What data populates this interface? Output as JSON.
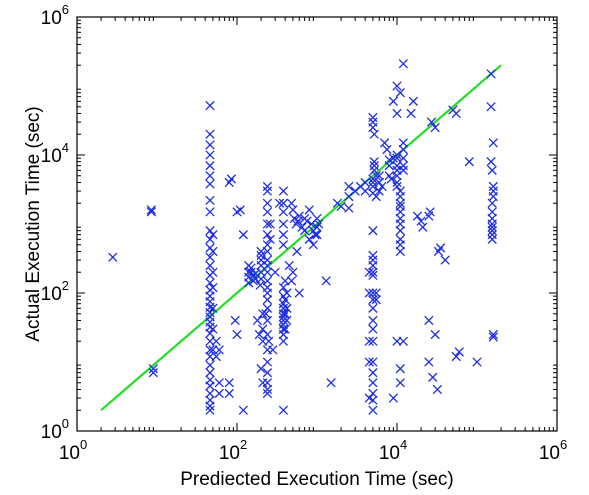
{
  "chart_data": {
    "type": "scatter",
    "title": "",
    "xlabel": "Prediected Execution Time (sec)",
    "ylabel": "Actual Execution Time (sec)",
    "xscale": "log",
    "yscale": "log",
    "xlim": [
      1,
      1000000
    ],
    "ylim": [
      1,
      1000000
    ],
    "x_ticks": [
      {
        "base": "10",
        "exp": "0"
      },
      {
        "base": "10",
        "exp": "2"
      },
      {
        "base": "10",
        "exp": "4"
      },
      {
        "base": "10",
        "exp": "6"
      }
    ],
    "y_ticks": [
      {
        "base": "10",
        "exp": "0"
      },
      {
        "base": "10",
        "exp": "2"
      },
      {
        "base": "10",
        "exp": "4"
      },
      {
        "base": "10",
        "exp": "6"
      }
    ],
    "grid": false,
    "legend": "none",
    "series": [
      {
        "marker": "x",
        "color": "#1f2fe0",
        "points": [
          [
            2.8,
            330
          ],
          [
            8.5,
            1600
          ],
          [
            8.5,
            1500
          ],
          [
            9.0,
            8
          ],
          [
            9.0,
            7
          ],
          [
            46,
            52000
          ],
          [
            46,
            20000
          ],
          [
            46,
            14000
          ],
          [
            46,
            10000
          ],
          [
            46,
            7000
          ],
          [
            46,
            5000
          ],
          [
            46,
            3800
          ],
          [
            46,
            2200
          ],
          [
            46,
            1500
          ],
          [
            46,
            800
          ],
          [
            46,
            600
          ],
          [
            46,
            450
          ],
          [
            46,
            330
          ],
          [
            46,
            250
          ],
          [
            46,
            180
          ],
          [
            46,
            140
          ],
          [
            46,
            110
          ],
          [
            46,
            90
          ],
          [
            46,
            75
          ],
          [
            46,
            62
          ],
          [
            46,
            52
          ],
          [
            46,
            45
          ],
          [
            46,
            38
          ],
          [
            46,
            32
          ],
          [
            46,
            26
          ],
          [
            46,
            20
          ],
          [
            46,
            15
          ],
          [
            46,
            12
          ],
          [
            46,
            9
          ],
          [
            46,
            7
          ],
          [
            46,
            5.5
          ],
          [
            46,
            4.5
          ],
          [
            46,
            3.5
          ],
          [
            46,
            2.8
          ],
          [
            46,
            2.3
          ],
          [
            46,
            2.0
          ],
          [
            50,
            700
          ],
          [
            50,
            400
          ],
          [
            50,
            200
          ],
          [
            50,
            120
          ],
          [
            50,
            60
          ],
          [
            50,
            30
          ],
          [
            50,
            15
          ],
          [
            55,
            20
          ],
          [
            55,
            12
          ],
          [
            60,
            15
          ],
          [
            60,
            5
          ],
          [
            60,
            3.5
          ],
          [
            80,
            5
          ],
          [
            80,
            3.5
          ],
          [
            85,
            4500
          ],
          [
            80,
            4000
          ],
          [
            100,
            1500
          ],
          [
            110,
            1600
          ],
          [
            120,
            700
          ],
          [
            120,
            2.0
          ],
          [
            95,
            40
          ],
          [
            100,
            25
          ],
          [
            140,
            250
          ],
          [
            140,
            200
          ],
          [
            140,
            170
          ],
          [
            140,
            140
          ],
          [
            150,
            230
          ],
          [
            150,
            200
          ],
          [
            160,
            180
          ],
          [
            160,
            150
          ],
          [
            170,
            190
          ],
          [
            170,
            160
          ],
          [
            195,
            130
          ],
          [
            200,
            400
          ],
          [
            200,
            350
          ],
          [
            200,
            300
          ],
          [
            200,
            250
          ],
          [
            200,
            200
          ],
          [
            200,
            160
          ],
          [
            210,
            50
          ],
          [
            210,
            30
          ],
          [
            210,
            20
          ],
          [
            240,
            3500
          ],
          [
            240,
            3000
          ],
          [
            240,
            2000
          ],
          [
            240,
            1500
          ],
          [
            240,
            1000
          ],
          [
            240,
            700
          ],
          [
            240,
            500
          ],
          [
            240,
            400
          ],
          [
            240,
            300
          ],
          [
            240,
            250
          ],
          [
            240,
            200
          ],
          [
            240,
            150
          ],
          [
            240,
            120
          ],
          [
            240,
            100
          ],
          [
            240,
            80
          ],
          [
            240,
            60
          ],
          [
            240,
            40
          ],
          [
            240,
            25
          ],
          [
            240,
            15
          ],
          [
            240,
            10
          ],
          [
            240,
            7
          ],
          [
            240,
            5
          ],
          [
            240,
            4
          ],
          [
            240,
            3.5
          ],
          [
            260,
            1000
          ],
          [
            260,
            600
          ],
          [
            180,
            40
          ],
          [
            190,
            25
          ],
          [
            230,
            50
          ],
          [
            250,
            20
          ],
          [
            280,
            15
          ],
          [
            300,
            200
          ],
          [
            340,
            2000
          ],
          [
            200,
            8
          ],
          [
            210,
            5
          ],
          [
            380,
            3000
          ],
          [
            380,
            2000
          ],
          [
            380,
            1500
          ],
          [
            380,
            1000
          ],
          [
            380,
            700
          ],
          [
            380,
            500
          ],
          [
            380,
            120
          ],
          [
            380,
            90
          ],
          [
            380,
            70
          ],
          [
            380,
            60
          ],
          [
            380,
            50
          ],
          [
            380,
            45
          ],
          [
            380,
            40
          ],
          [
            380,
            35
          ],
          [
            380,
            30
          ],
          [
            380,
            25
          ],
          [
            380,
            20
          ],
          [
            380,
            2.0
          ],
          [
            400,
            150
          ],
          [
            400,
            80
          ],
          [
            400,
            50
          ],
          [
            400,
            30
          ],
          [
            420,
            100
          ],
          [
            420,
            60
          ],
          [
            420,
            40
          ],
          [
            480,
            2000
          ],
          [
            500,
            1600
          ],
          [
            520,
            1200
          ],
          [
            550,
            1000
          ],
          [
            580,
            1100
          ],
          [
            600,
            1300
          ],
          [
            650,
            900
          ],
          [
            700,
            1200
          ],
          [
            700,
            800
          ],
          [
            750,
            1100
          ],
          [
            800,
            1600
          ],
          [
            850,
            1000
          ],
          [
            900,
            800
          ],
          [
            950,
            700
          ],
          [
            1000,
            1200
          ],
          [
            1000,
            900
          ],
          [
            1000,
            700
          ],
          [
            1050,
            1000
          ],
          [
            450,
            250
          ],
          [
            480,
            150
          ],
          [
            600,
            100
          ],
          [
            500,
            200
          ],
          [
            560,
            400
          ],
          [
            800,
            600
          ],
          [
            900,
            500
          ],
          [
            1300,
            150
          ],
          [
            1500,
            5
          ],
          [
            1800,
            2000
          ],
          [
            2000,
            1800
          ],
          [
            2500,
            3500
          ],
          [
            2500,
            1700
          ],
          [
            2500,
            2500
          ],
          [
            3000,
            3000
          ],
          [
            3500,
            3500
          ],
          [
            4000,
            4000
          ],
          [
            4000,
            3000
          ],
          [
            5000,
            4000
          ],
          [
            5000,
            3500
          ],
          [
            5000,
            4500
          ],
          [
            5500,
            5000
          ],
          [
            6000,
            5000
          ],
          [
            6000,
            4000
          ],
          [
            6500,
            3500
          ],
          [
            6000,
            3000
          ],
          [
            5000,
            2800
          ],
          [
            5500,
            2500
          ],
          [
            5000,
            35000
          ],
          [
            5000,
            30000
          ],
          [
            5000,
            25000
          ],
          [
            5200,
            20000
          ],
          [
            5200,
            8000
          ],
          [
            5200,
            7000
          ],
          [
            5200,
            6000
          ],
          [
            5000,
            800
          ],
          [
            5000,
            350
          ],
          [
            5000,
            300
          ],
          [
            5000,
            250
          ],
          [
            5000,
            200
          ],
          [
            5000,
            180
          ],
          [
            5000,
            100
          ],
          [
            5000,
            80
          ],
          [
            5000,
            60
          ],
          [
            5000,
            40
          ],
          [
            5000,
            30
          ],
          [
            5000,
            20
          ],
          [
            5000,
            10
          ],
          [
            5000,
            7
          ],
          [
            5000,
            5
          ],
          [
            5000,
            3.5
          ],
          [
            5000,
            2.8
          ],
          [
            5000,
            2.0
          ],
          [
            4500,
            200
          ],
          [
            4500,
            100
          ],
          [
            4500,
            20
          ],
          [
            4500,
            10
          ],
          [
            4500,
            3.0
          ],
          [
            5500,
            100
          ],
          [
            5500,
            80
          ],
          [
            7000,
            15000
          ],
          [
            7500,
            12000
          ],
          [
            8000,
            7000
          ],
          [
            8000,
            5000
          ],
          [
            8500,
            4500
          ],
          [
            8000,
            8500
          ],
          [
            9000,
            9000
          ],
          [
            10000,
            10000
          ],
          [
            10000,
            9000
          ],
          [
            10000,
            7000
          ],
          [
            10000,
            6000
          ],
          [
            10000,
            5000
          ],
          [
            10000,
            4000
          ],
          [
            10000,
            3500
          ],
          [
            11000,
            3000
          ],
          [
            11000,
            2500
          ],
          [
            11000,
            2000
          ],
          [
            11000,
            1800
          ],
          [
            11000,
            1500
          ],
          [
            11000,
            1200
          ],
          [
            11000,
            1000
          ],
          [
            11000,
            800
          ],
          [
            11000,
            600
          ],
          [
            11000,
            500
          ],
          [
            11000,
            400
          ],
          [
            12000,
            15000
          ],
          [
            12000,
            12000
          ],
          [
            12000,
            9000
          ],
          [
            12000,
            7000
          ],
          [
            12000,
            6000
          ],
          [
            9000,
            60000
          ],
          [
            10000,
            100000
          ],
          [
            11000,
            80000
          ],
          [
            10000,
            40000
          ],
          [
            12000,
            210000
          ],
          [
            15000,
            40000
          ],
          [
            16000,
            60000
          ],
          [
            10000,
            20
          ],
          [
            11000,
            8
          ],
          [
            11000,
            5
          ],
          [
            12000,
            20
          ],
          [
            9000,
            3.0
          ],
          [
            18000,
            1300
          ],
          [
            20000,
            1100
          ],
          [
            21000,
            900
          ],
          [
            25000,
            1300
          ],
          [
            26000,
            1500
          ],
          [
            27000,
            30000
          ],
          [
            30000,
            25000
          ],
          [
            33000,
            400
          ],
          [
            35000,
            450
          ],
          [
            25000,
            40
          ],
          [
            30000,
            25
          ],
          [
            25000,
            10
          ],
          [
            28000,
            6
          ],
          [
            32000,
            4
          ],
          [
            40000,
            300
          ],
          [
            50000,
            45000
          ],
          [
            55000,
            40000
          ],
          [
            60000,
            14
          ],
          [
            55000,
            12
          ],
          [
            80000,
            8000
          ],
          [
            100000,
            10
          ],
          [
            150000,
            150000
          ],
          [
            150000,
            50000
          ],
          [
            155000,
            6000
          ],
          [
            155000,
            2000
          ],
          [
            155000,
            1500
          ],
          [
            155000,
            1200
          ],
          [
            155000,
            1000
          ],
          [
            155000,
            900
          ],
          [
            155000,
            800
          ],
          [
            155000,
            700
          ],
          [
            155000,
            600
          ],
          [
            160000,
            3500
          ],
          [
            160000,
            3000
          ],
          [
            160000,
            2500
          ],
          [
            160000,
            15000
          ],
          [
            160000,
            25
          ],
          [
            160000,
            23
          ],
          [
            150000,
            8000
          ]
        ]
      },
      {
        "type": "line",
        "color": "#22dd22",
        "x": [
          2,
          200000
        ],
        "y": [
          2,
          200000
        ]
      }
    ]
  }
}
